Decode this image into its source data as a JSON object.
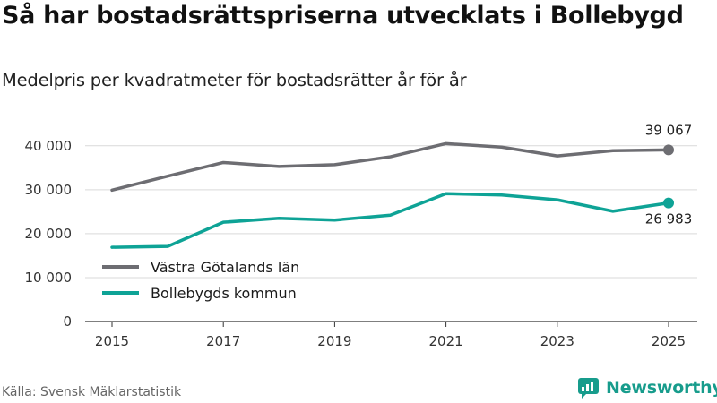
{
  "header": {
    "title": "Så har bostadsrättspriserna utvecklats i Bollebygd",
    "subtitle": "Medelpris per kvadratmeter för bostadsrätter år för år"
  },
  "footer": {
    "source": "Källa: Svensk Mäklarstatistik",
    "brand": "Newsworthy"
  },
  "colors": {
    "gray_series": "#6d6d72",
    "teal_series": "#0ea396",
    "grid": "#d9d9d9",
    "brand": "#179c8c"
  },
  "chart_data": {
    "type": "line",
    "title": "Så har bostadsrättspriserna utvecklats i Bollebygd",
    "subtitle": "Medelpris per kvadratmeter för bostadsrätter år för år",
    "xlabel": "",
    "ylabel": "",
    "x": [
      2015,
      2016,
      2017,
      2018,
      2019,
      2020,
      2021,
      2022,
      2023,
      2024,
      2025
    ],
    "xticks": [
      "2015",
      "2017",
      "2019",
      "2021",
      "2023",
      "2025"
    ],
    "xlim": [
      2014.6,
      2025.6
    ],
    "ylim": [
      0,
      42000
    ],
    "yticks": [
      0,
      10000,
      20000,
      30000,
      40000
    ],
    "ytick_labels": [
      "0",
      "10 000",
      "20 000",
      "30 000",
      "40 000"
    ],
    "grid": true,
    "legend_position": "bottom-left",
    "series": [
      {
        "name": "Västra Götalands län",
        "color": "#6d6d72",
        "values": [
          29900,
          33100,
          36200,
          35300,
          35700,
          37500,
          40500,
          39700,
          37700,
          38900,
          39067
        ],
        "end_label": "39 067"
      },
      {
        "name": "Bollebygds kommun",
        "color": "#0ea396",
        "values": [
          16900,
          17100,
          22600,
          23500,
          23100,
          24200,
          29100,
          28800,
          27700,
          25100,
          26983
        ],
        "end_label": "26 983"
      }
    ]
  }
}
